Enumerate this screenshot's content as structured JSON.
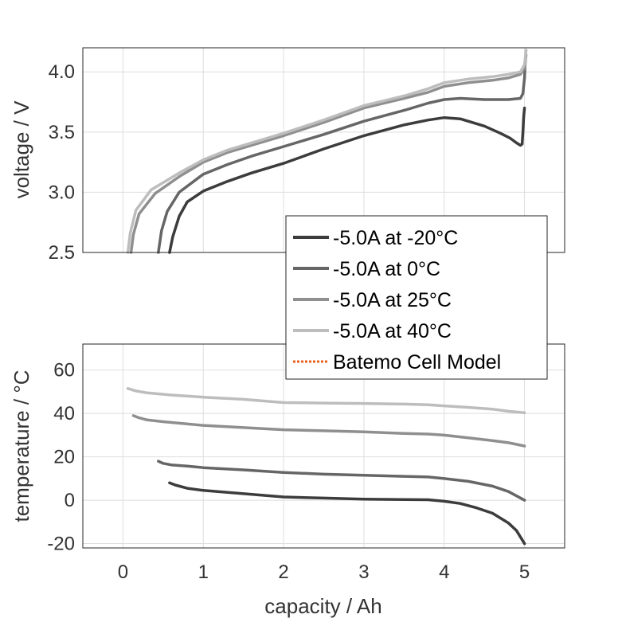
{
  "chart_data": [
    {
      "type": "line",
      "ylabel": "voltage / V",
      "xlim": [
        -0.5,
        5.5
      ],
      "ylim": [
        2.5,
        4.2
      ],
      "yticks": [
        "2.5",
        "3.0",
        "3.5",
        "4.0"
      ],
      "grid": true,
      "series": [
        {
          "name": "-5.0A at -20°C",
          "color": "#3c3c3c",
          "x": [
            0.58,
            0.62,
            0.7,
            0.8,
            1.0,
            1.3,
            1.6,
            2.0,
            2.5,
            3.0,
            3.5,
            3.8,
            4.0,
            4.2,
            4.5,
            4.7,
            4.82,
            4.9,
            4.95,
            4.97,
            4.98,
            4.99,
            5.0
          ],
          "y": [
            2.5,
            2.63,
            2.8,
            2.92,
            3.01,
            3.09,
            3.16,
            3.24,
            3.36,
            3.47,
            3.56,
            3.6,
            3.62,
            3.61,
            3.55,
            3.49,
            3.45,
            3.41,
            3.39,
            3.4,
            3.5,
            3.63,
            3.7
          ]
        },
        {
          "name": "-5.0A at 0°C",
          "color": "#666666",
          "x": [
            0.44,
            0.48,
            0.55,
            0.7,
            1.0,
            1.3,
            1.6,
            2.0,
            2.5,
            3.0,
            3.5,
            3.8,
            4.0,
            4.2,
            4.5,
            4.8,
            4.95,
            4.98,
            5.0,
            5.01
          ],
          "y": [
            2.5,
            2.68,
            2.84,
            3.0,
            3.15,
            3.23,
            3.3,
            3.38,
            3.48,
            3.59,
            3.68,
            3.74,
            3.77,
            3.78,
            3.77,
            3.77,
            3.78,
            3.82,
            3.95,
            4.1
          ]
        },
        {
          "name": "-5.0A at 25°C",
          "color": "#8f8f8f",
          "x": [
            0.1,
            0.13,
            0.2,
            0.4,
            0.7,
            1.0,
            1.3,
            1.6,
            2.0,
            2.5,
            3.0,
            3.5,
            3.8,
            4.0,
            4.3,
            4.6,
            4.8,
            4.95,
            5.0,
            5.02
          ],
          "y": [
            2.5,
            2.65,
            2.82,
            2.99,
            3.13,
            3.25,
            3.33,
            3.39,
            3.47,
            3.58,
            3.7,
            3.78,
            3.83,
            3.88,
            3.91,
            3.93,
            3.95,
            3.98,
            4.03,
            4.14
          ]
        },
        {
          "name": "-5.0A at 40°C",
          "color": "#bdbdbd",
          "x": [
            0.06,
            0.09,
            0.16,
            0.35,
            0.7,
            1.0,
            1.3,
            1.6,
            2.0,
            2.5,
            3.0,
            3.5,
            3.8,
            4.0,
            4.3,
            4.6,
            4.8,
            4.95,
            5.0,
            5.02
          ],
          "y": [
            2.5,
            2.66,
            2.85,
            3.02,
            3.16,
            3.27,
            3.35,
            3.41,
            3.49,
            3.6,
            3.72,
            3.8,
            3.86,
            3.91,
            3.94,
            3.96,
            3.98,
            4.0,
            4.06,
            4.18
          ]
        }
      ]
    },
    {
      "type": "line",
      "xlabel": "capacity / Ah",
      "ylabel": "temperature / °C",
      "xlim": [
        -0.5,
        5.5
      ],
      "ylim": [
        -22,
        72
      ],
      "xticks": [
        "0",
        "1",
        "2",
        "3",
        "4",
        "5"
      ],
      "yticks": [
        "-20",
        "0",
        "20",
        "40",
        "60"
      ],
      "grid": true,
      "series": [
        {
          "name": "-5.0A at -20°C",
          "color": "#3c3c3c",
          "x": [
            0.58,
            0.65,
            0.8,
            1.0,
            1.5,
            2.0,
            2.5,
            3.0,
            3.5,
            3.8,
            4.0,
            4.2,
            4.4,
            4.6,
            4.8,
            4.9,
            5.0
          ],
          "y": [
            8,
            7,
            5.5,
            4.5,
            3,
            1.5,
            1,
            0.5,
            0.3,
            0.2,
            -0.5,
            -1.5,
            -3.5,
            -6,
            -10.5,
            -14,
            -20
          ]
        },
        {
          "name": "-5.0A at 0°C",
          "color": "#666666",
          "x": [
            0.44,
            0.5,
            0.6,
            0.8,
            1.0,
            1.5,
            2.0,
            2.5,
            3.0,
            3.5,
            3.8,
            4.0,
            4.3,
            4.6,
            4.8,
            5.0
          ],
          "y": [
            18,
            17,
            16.3,
            15.7,
            15,
            14,
            12.8,
            12,
            11.5,
            11,
            10.7,
            10,
            8.7,
            6.5,
            4,
            0
          ]
        },
        {
          "name": "-5.0A at 25°C",
          "color": "#8f8f8f",
          "x": [
            0.13,
            0.2,
            0.3,
            0.5,
            1.0,
            1.5,
            2.0,
            2.5,
            3.0,
            3.5,
            3.8,
            4.0,
            4.3,
            4.6,
            4.8,
            5.0
          ],
          "y": [
            39,
            38,
            37,
            36.2,
            34.5,
            33.5,
            32.5,
            32,
            31.5,
            30.8,
            30.5,
            30,
            28.8,
            27.5,
            26.5,
            25
          ]
        },
        {
          "name": "-5.0A at 40°C",
          "color": "#bdbdbd",
          "x": [
            0.06,
            0.15,
            0.3,
            0.6,
            1.0,
            1.5,
            2.0,
            2.5,
            3.0,
            3.5,
            3.8,
            4.0,
            4.3,
            4.6,
            4.8,
            5.0
          ],
          "y": [
            51.5,
            50.5,
            49.5,
            48.5,
            47.5,
            46.5,
            45,
            44.8,
            44.6,
            44.3,
            44,
            43.5,
            42.8,
            42,
            41,
            40.3
          ]
        }
      ]
    }
  ],
  "legend": {
    "placement": "lower-right of top panel",
    "entries": [
      {
        "label": "-5.0A at -20°C",
        "color": "#3c3c3c",
        "style": "solid"
      },
      {
        "label": "-5.0A at 0°C",
        "color": "#666666",
        "style": "solid"
      },
      {
        "label": "-5.0A at 25°C",
        "color": "#8f8f8f",
        "style": "solid"
      },
      {
        "label": "-5.0A at 40°C",
        "color": "#bdbdbd",
        "style": "solid"
      },
      {
        "label": "Batemo Cell Model",
        "color": "#e8601c",
        "style": "dotted"
      }
    ]
  }
}
